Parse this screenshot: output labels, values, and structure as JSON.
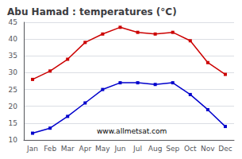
{
  "chart_data": {
    "type": "line",
    "title": "Abu Hamad : temperatures (°C)",
    "categories": [
      "Jan",
      "Feb",
      "Mar",
      "Apr",
      "May",
      "Jun",
      "Jul",
      "Aug",
      "Sep",
      "Oct",
      "Nov",
      "Dec"
    ],
    "series": [
      {
        "color": "#cc0000",
        "values": [
          28,
          30.5,
          34,
          39,
          41.5,
          43.5,
          42,
          41.5,
          42,
          39.5,
          33,
          29.5
        ]
      },
      {
        "color": "#0000cc",
        "values": [
          12,
          13.5,
          17,
          21,
          25,
          27,
          27,
          26.5,
          27,
          23.5,
          19,
          14
        ]
      }
    ],
    "marker": "square",
    "ylim": [
      10,
      45
    ],
    "yticks": [
      10,
      15,
      20,
      25,
      30,
      35,
      40,
      45
    ],
    "grid": true,
    "annotations": [
      "www.allmetsat.com"
    ]
  }
}
